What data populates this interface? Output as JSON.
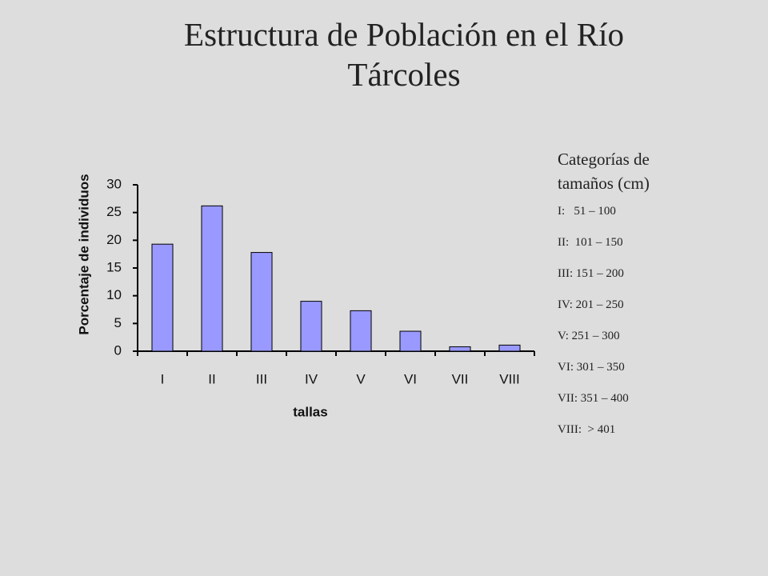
{
  "chart_data": {
    "type": "bar",
    "title": "Estructura de Población en el Río Tárcoles",
    "x_label": "tallas",
    "y_label": "Porcentaje de individuos",
    "categories": [
      "I",
      "II",
      "III",
      "IV",
      "V",
      "VI",
      "VII",
      "VIII"
    ],
    "values": [
      19.3,
      26.2,
      17.8,
      9,
      7.3,
      3.6,
      0.8,
      1.1
    ],
    "color": "#9999ff",
    "ylim": [
      0,
      30
    ],
    "yticks": [
      0,
      5,
      10,
      15,
      20,
      25,
      30
    ],
    "grid": false
  },
  "legend_box": {
    "title": "Categorías de tamaños (cm)",
    "items": [
      "I:   51 – 100",
      "II:  101 – 150",
      "III: 151 – 200",
      "IV: 201 – 250",
      "V: 251 – 300",
      "VI: 301 – 350",
      "VII: 351 – 400",
      "VIII:  > 401"
    ]
  }
}
